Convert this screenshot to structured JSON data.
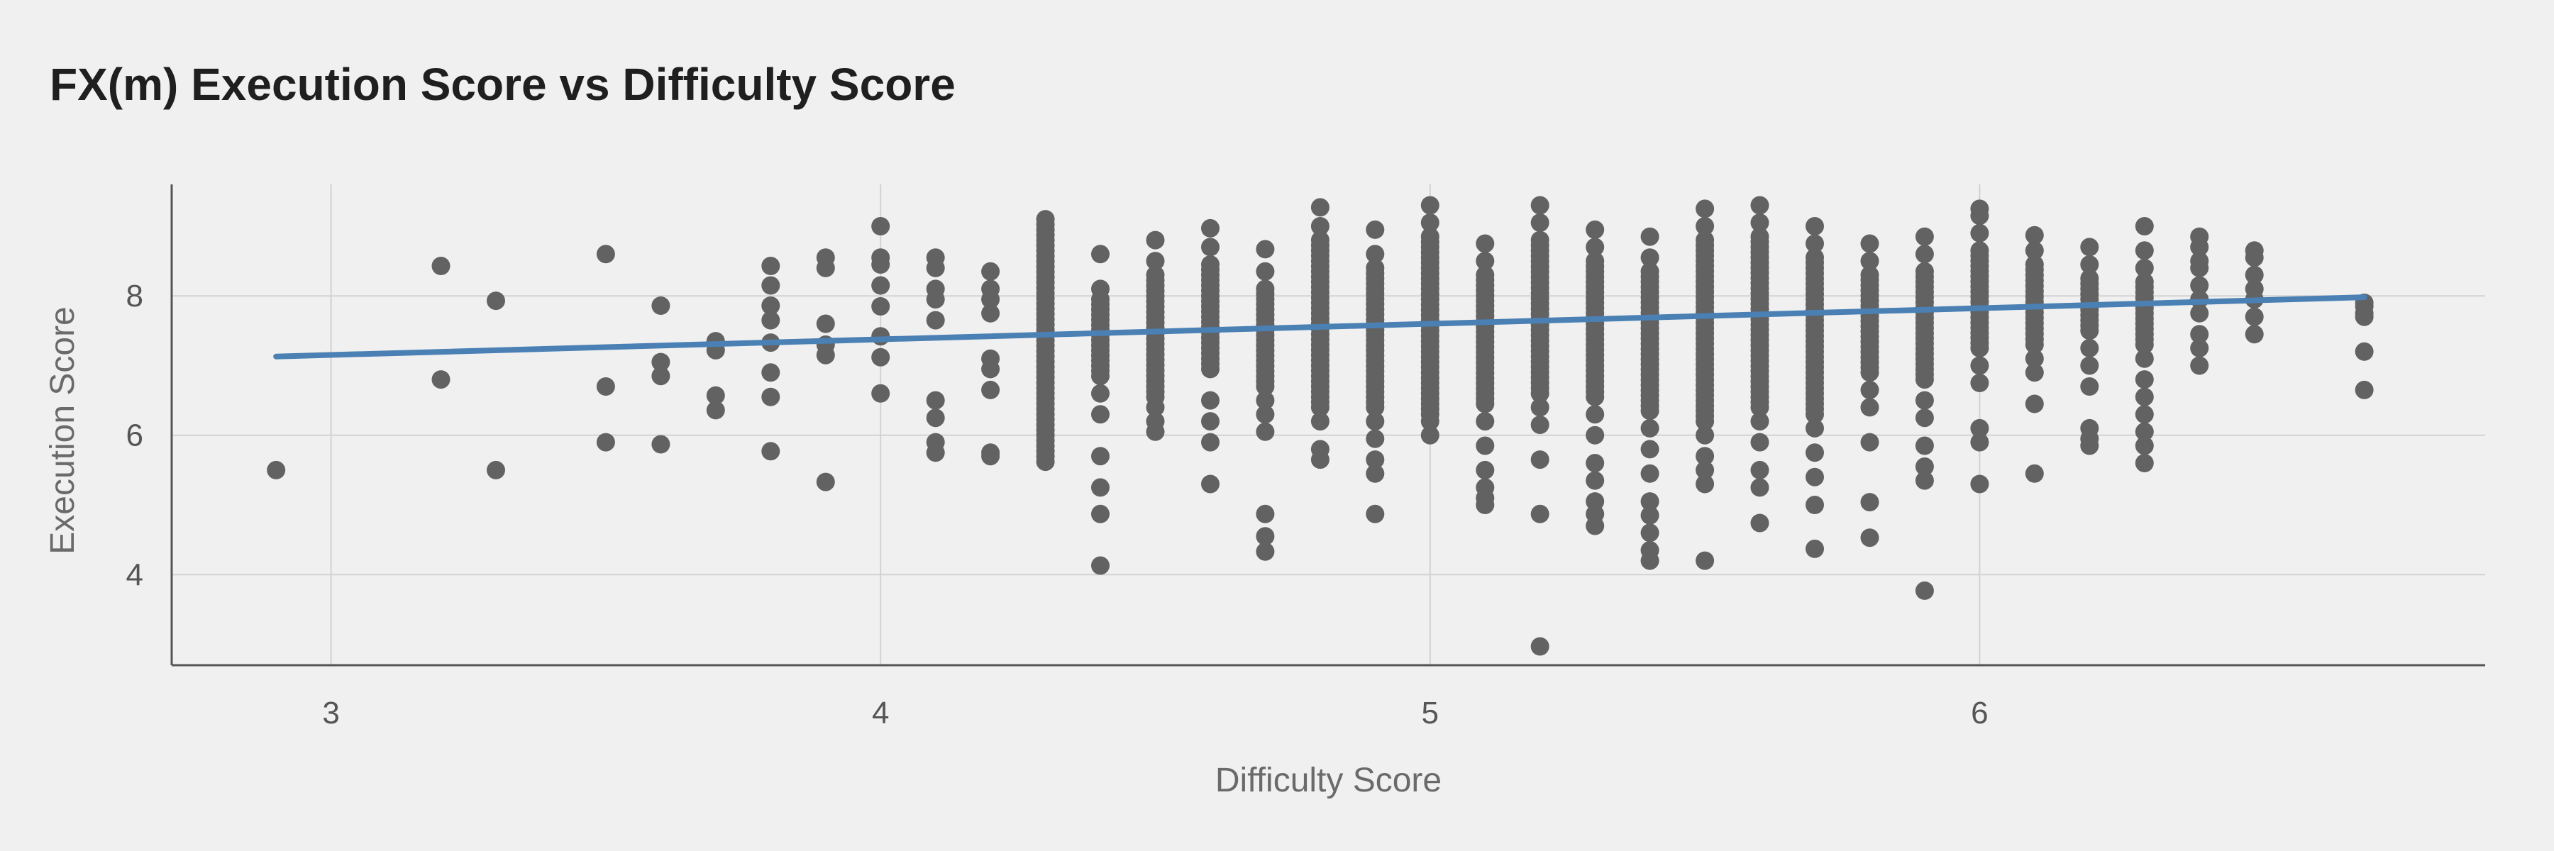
{
  "title": "FX(m) Execution Score vs Difficulty Score",
  "chart_data": {
    "type": "scatter",
    "title": "FX(m) Execution Score vs Difficulty Score",
    "xlabel": "Difficulty Score",
    "ylabel": "Execution Score",
    "xlim": [
      2.71,
      6.92
    ],
    "ylim": [
      2.7,
      9.6
    ],
    "xticks": [
      3,
      4,
      5,
      6
    ],
    "yticks": [
      4,
      6,
      8
    ],
    "grid": true,
    "colors": {
      "points": "#626262",
      "trend": "#4a80b4",
      "grid": "#d2d2d2",
      "axis": "#555555"
    },
    "trend_line": {
      "x": [
        2.9,
        6.7
      ],
      "y": [
        7.13,
        7.98
      ]
    },
    "points": [
      [
        2.9,
        5.5
      ],
      [
        3.2,
        8.43
      ],
      [
        3.2,
        6.8
      ],
      [
        3.3,
        7.93
      ],
      [
        3.3,
        5.5
      ],
      [
        3.5,
        8.6
      ],
      [
        3.5,
        6.7
      ],
      [
        3.5,
        5.9
      ],
      [
        3.6,
        7.86
      ],
      [
        3.6,
        7.05
      ],
      [
        3.6,
        6.85
      ],
      [
        3.6,
        5.87
      ],
      [
        3.7,
        7.35
      ],
      [
        3.7,
        7.22
      ],
      [
        3.7,
        6.57
      ],
      [
        3.7,
        6.36
      ],
      [
        3.8,
        8.43
      ],
      [
        3.8,
        8.15
      ],
      [
        3.8,
        7.86
      ],
      [
        3.8,
        7.65
      ],
      [
        3.8,
        7.33
      ],
      [
        3.8,
        6.9
      ],
      [
        3.8,
        6.55
      ],
      [
        3.8,
        5.77
      ],
      [
        3.9,
        8.55
      ],
      [
        3.9,
        8.4
      ],
      [
        3.9,
        7.6
      ],
      [
        3.9,
        7.3
      ],
      [
        3.9,
        7.15
      ],
      [
        3.9,
        5.33
      ],
      [
        4.0,
        9.0
      ],
      [
        4.0,
        8.55
      ],
      [
        4.0,
        8.45
      ],
      [
        4.0,
        8.15
      ],
      [
        4.0,
        7.85
      ],
      [
        4.0,
        7.42
      ],
      [
        4.0,
        7.12
      ],
      [
        4.0,
        6.6
      ],
      [
        4.1,
        8.55
      ],
      [
        4.1,
        8.4
      ],
      [
        4.1,
        8.1
      ],
      [
        4.1,
        7.95
      ],
      [
        4.1,
        7.65
      ],
      [
        4.1,
        6.5
      ],
      [
        4.1,
        6.25
      ],
      [
        4.1,
        5.9
      ],
      [
        4.1,
        5.75
      ],
      [
        4.2,
        8.35
      ],
      [
        4.2,
        8.1
      ],
      [
        4.2,
        7.95
      ],
      [
        4.2,
        7.75
      ],
      [
        4.2,
        7.1
      ],
      [
        4.2,
        6.95
      ],
      [
        4.2,
        6.65
      ],
      [
        4.2,
        5.75
      ],
      [
        4.2,
        5.7
      ],
      [
        4.4,
        8.6
      ],
      [
        4.4,
        8.1
      ],
      [
        4.4,
        6.6
      ],
      [
        4.4,
        6.3
      ],
      [
        4.4,
        5.7
      ],
      [
        4.4,
        5.25
      ],
      [
        4.4,
        4.87
      ],
      [
        4.4,
        4.13
      ],
      [
        4.5,
        8.8
      ],
      [
        4.5,
        8.5
      ],
      [
        4.5,
        6.4
      ],
      [
        4.5,
        6.2
      ],
      [
        4.5,
        6.05
      ],
      [
        4.6,
        8.97
      ],
      [
        4.6,
        8.7
      ],
      [
        4.6,
        6.5
      ],
      [
        4.6,
        6.2
      ],
      [
        4.6,
        5.9
      ],
      [
        4.6,
        5.3
      ],
      [
        4.7,
        8.67
      ],
      [
        4.7,
        8.35
      ],
      [
        4.7,
        6.5
      ],
      [
        4.7,
        6.3
      ],
      [
        4.7,
        6.05
      ],
      [
        4.7,
        4.87
      ],
      [
        4.7,
        4.55
      ],
      [
        4.7,
        4.33
      ],
      [
        4.8,
        9.27
      ],
      [
        4.8,
        9.0
      ],
      [
        4.8,
        6.2
      ],
      [
        4.8,
        5.8
      ],
      [
        4.8,
        5.65
      ],
      [
        4.9,
        8.95
      ],
      [
        4.9,
        8.6
      ],
      [
        4.9,
        6.2
      ],
      [
        4.9,
        5.95
      ],
      [
        4.9,
        5.65
      ],
      [
        4.9,
        5.45
      ],
      [
        4.9,
        4.87
      ],
      [
        5.0,
        9.3
      ],
      [
        5.0,
        9.05
      ],
      [
        5.0,
        6.2
      ],
      [
        5.0,
        6.0
      ],
      [
        5.1,
        8.75
      ],
      [
        5.1,
        8.5
      ],
      [
        5.1,
        6.2
      ],
      [
        5.1,
        5.85
      ],
      [
        5.1,
        5.5
      ],
      [
        5.1,
        5.25
      ],
      [
        5.1,
        5.1
      ],
      [
        5.1,
        5.0
      ],
      [
        5.2,
        9.3
      ],
      [
        5.2,
        9.05
      ],
      [
        5.2,
        6.4
      ],
      [
        5.2,
        6.15
      ],
      [
        5.2,
        5.65
      ],
      [
        5.2,
        4.87
      ],
      [
        5.2,
        2.97
      ],
      [
        5.3,
        8.95
      ],
      [
        5.3,
        8.7
      ],
      [
        5.3,
        6.3
      ],
      [
        5.3,
        6.0
      ],
      [
        5.3,
        5.6
      ],
      [
        5.3,
        5.35
      ],
      [
        5.3,
        5.05
      ],
      [
        5.3,
        4.87
      ],
      [
        5.3,
        4.7
      ],
      [
        5.4,
        8.85
      ],
      [
        5.4,
        8.55
      ],
      [
        5.4,
        6.1
      ],
      [
        5.4,
        5.8
      ],
      [
        5.4,
        5.45
      ],
      [
        5.4,
        5.05
      ],
      [
        5.4,
        4.85
      ],
      [
        5.4,
        4.6
      ],
      [
        5.4,
        4.35
      ],
      [
        5.4,
        4.2
      ],
      [
        5.5,
        9.25
      ],
      [
        5.5,
        9.0
      ],
      [
        5.5,
        6.0
      ],
      [
        5.5,
        5.7
      ],
      [
        5.5,
        5.5
      ],
      [
        5.5,
        5.3
      ],
      [
        5.5,
        4.2
      ],
      [
        5.6,
        9.3
      ],
      [
        5.6,
        9.05
      ],
      [
        5.6,
        6.2
      ],
      [
        5.6,
        5.9
      ],
      [
        5.6,
        5.5
      ],
      [
        5.6,
        5.25
      ],
      [
        5.6,
        4.74
      ],
      [
        5.7,
        9.0
      ],
      [
        5.7,
        8.75
      ],
      [
        5.7,
        6.1
      ],
      [
        5.7,
        5.75
      ],
      [
        5.7,
        5.4
      ],
      [
        5.7,
        5.0
      ],
      [
        5.7,
        4.37
      ],
      [
        5.8,
        8.75
      ],
      [
        5.8,
        8.5
      ],
      [
        5.8,
        6.65
      ],
      [
        5.8,
        6.4
      ],
      [
        5.8,
        5.9
      ],
      [
        5.8,
        5.04
      ],
      [
        5.8,
        4.53
      ],
      [
        5.9,
        8.85
      ],
      [
        5.9,
        8.6
      ],
      [
        5.9,
        6.5
      ],
      [
        5.9,
        6.25
      ],
      [
        5.9,
        5.85
      ],
      [
        5.9,
        5.55
      ],
      [
        5.9,
        5.35
      ],
      [
        5.9,
        3.77
      ],
      [
        6.0,
        9.25
      ],
      [
        6.0,
        9.15
      ],
      [
        6.0,
        8.9
      ],
      [
        6.0,
        7.0
      ],
      [
        6.0,
        6.75
      ],
      [
        6.0,
        6.1
      ],
      [
        6.0,
        5.9
      ],
      [
        6.0,
        5.3
      ],
      [
        6.1,
        8.87
      ],
      [
        6.1,
        8.65
      ],
      [
        6.1,
        7.1
      ],
      [
        6.1,
        6.9
      ],
      [
        6.1,
        6.45
      ],
      [
        6.1,
        5.45
      ],
      [
        6.2,
        8.7
      ],
      [
        6.2,
        8.45
      ],
      [
        6.2,
        7.25
      ],
      [
        6.2,
        7.0
      ],
      [
        6.2,
        6.7
      ],
      [
        6.2,
        6.1
      ],
      [
        6.2,
        5.95
      ],
      [
        6.2,
        5.85
      ],
      [
        6.3,
        9.0
      ],
      [
        6.3,
        8.65
      ],
      [
        6.3,
        8.4
      ],
      [
        6.3,
        7.1
      ],
      [
        6.3,
        6.8
      ],
      [
        6.3,
        6.55
      ],
      [
        6.3,
        6.3
      ],
      [
        6.3,
        6.05
      ],
      [
        6.3,
        5.85
      ],
      [
        6.3,
        5.6
      ],
      [
        6.4,
        8.85
      ],
      [
        6.4,
        8.7
      ],
      [
        6.4,
        8.5
      ],
      [
        6.4,
        8.4
      ],
      [
        6.4,
        8.15
      ],
      [
        6.4,
        7.95
      ],
      [
        6.4,
        7.75
      ],
      [
        6.4,
        7.45
      ],
      [
        6.4,
        7.25
      ],
      [
        6.4,
        7.0
      ],
      [
        6.5,
        8.65
      ],
      [
        6.5,
        8.55
      ],
      [
        6.5,
        8.3
      ],
      [
        6.5,
        8.1
      ],
      [
        6.5,
        7.95
      ],
      [
        6.5,
        7.7
      ],
      [
        6.5,
        7.45
      ],
      [
        6.7,
        7.9
      ],
      [
        6.7,
        7.85
      ],
      [
        6.7,
        7.75
      ],
      [
        6.7,
        7.7
      ],
      [
        6.7,
        7.2
      ],
      [
        6.7,
        6.65
      ]
    ],
    "dense_columns": [
      {
        "x": 4.3,
        "y_range": [
          5.62,
          9.1
        ]
      },
      {
        "x": 4.4,
        "y_range": [
          6.85,
          7.95
        ]
      },
      {
        "x": 4.5,
        "y_range": [
          6.55,
          8.3
        ]
      },
      {
        "x": 4.6,
        "y_range": [
          6.95,
          8.45
        ]
      },
      {
        "x": 4.7,
        "y_range": [
          6.7,
          8.1
        ]
      },
      {
        "x": 4.8,
        "y_range": [
          6.4,
          8.8
        ]
      },
      {
        "x": 4.9,
        "y_range": [
          6.4,
          8.4
        ]
      },
      {
        "x": 5.0,
        "y_range": [
          6.3,
          8.85
        ]
      },
      {
        "x": 5.1,
        "y_range": [
          6.45,
          8.3
        ]
      },
      {
        "x": 5.2,
        "y_range": [
          6.6,
          8.8
        ]
      },
      {
        "x": 5.3,
        "y_range": [
          6.55,
          8.5
        ]
      },
      {
        "x": 5.4,
        "y_range": [
          6.35,
          8.35
        ]
      },
      {
        "x": 5.5,
        "y_range": [
          6.2,
          8.8
        ]
      },
      {
        "x": 5.6,
        "y_range": [
          6.4,
          8.85
        ]
      },
      {
        "x": 5.7,
        "y_range": [
          6.3,
          8.55
        ]
      },
      {
        "x": 5.8,
        "y_range": [
          6.9,
          8.3
        ]
      },
      {
        "x": 5.9,
        "y_range": [
          6.8,
          8.35
        ]
      },
      {
        "x": 6.0,
        "y_range": [
          7.25,
          8.65
        ]
      },
      {
        "x": 6.1,
        "y_range": [
          7.3,
          8.45
        ]
      },
      {
        "x": 6.2,
        "y_range": [
          7.5,
          8.25
        ]
      },
      {
        "x": 6.3,
        "y_range": [
          7.3,
          8.2
        ]
      }
    ],
    "dense_step": 0.075
  }
}
